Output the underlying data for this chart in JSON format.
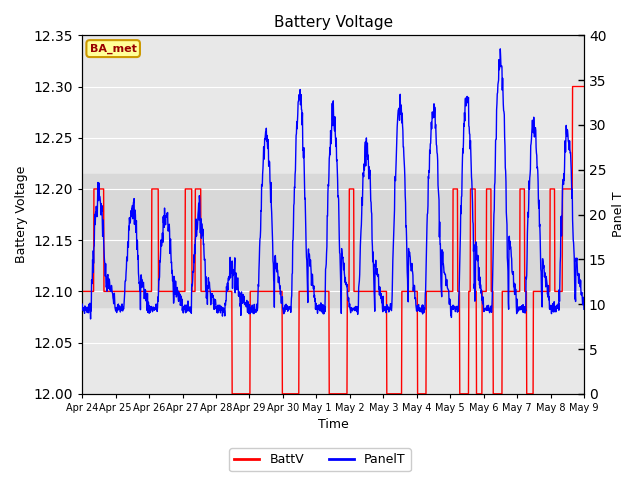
{
  "title": "Battery Voltage",
  "xlabel": "Time",
  "ylabel_left": "Battery Voltage",
  "ylabel_right": "Panel T",
  "ylim_left": [
    12.0,
    12.35
  ],
  "ylim_right": [
    0,
    40
  ],
  "yticks_left": [
    12.0,
    12.05,
    12.1,
    12.15,
    12.2,
    12.25,
    12.3,
    12.35
  ],
  "yticks_right": [
    0,
    5,
    10,
    15,
    20,
    25,
    30,
    35,
    40
  ],
  "x_labels": [
    "Apr 24",
    "Apr 25",
    "Apr 26",
    "Apr 27",
    "Apr 28",
    "Apr 29",
    "Apr 30",
    "May 1",
    "May 2",
    "May 3",
    "May 4",
    "May 5",
    "May 6",
    "May 7",
    "May 8",
    "May 9"
  ],
  "band_color": "#d8d8d8",
  "band_ylim": [
    12.085,
    12.215
  ],
  "annotation_text": "BA_met",
  "annotation_color": "#990000",
  "annotation_bg": "#ffff99",
  "annotation_edge": "#cc9900",
  "legend_labels": [
    "BattV",
    "PanelT"
  ],
  "legend_colors": [
    "red",
    "blue"
  ],
  "batt_color": "red",
  "panel_color": "blue",
  "plot_bg": "#e8e8e8",
  "fig_bg": "white"
}
